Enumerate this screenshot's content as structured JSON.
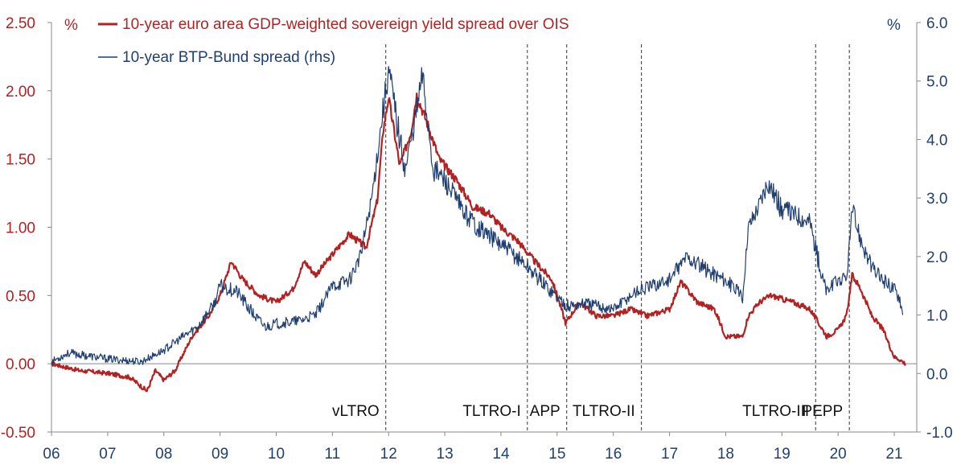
{
  "chart_data": {
    "type": "line",
    "title": "",
    "x_ticks": [
      "06",
      "07",
      "08",
      "09",
      "10",
      "11",
      "12",
      "13",
      "14",
      "15",
      "16",
      "17",
      "18",
      "19",
      "20",
      "21"
    ],
    "x_range": [
      2006.0,
      2021.4
    ],
    "y_left": {
      "unit": "%",
      "range": [
        -0.5,
        2.5
      ],
      "ticks": [
        "-0.50",
        "0.00",
        "0.50",
        "1.00",
        "1.50",
        "2.00",
        "2.50"
      ],
      "color": "#b22222"
    },
    "y_right": {
      "unit": "%",
      "range": [
        -1.0,
        6.0
      ],
      "ticks": [
        "-1.0",
        "0.0",
        "1.0",
        "2.0",
        "3.0",
        "4.0",
        "5.0",
        "6.0"
      ],
      "color": "#1f3f73"
    },
    "legend_position": "top-left",
    "series": [
      {
        "name": "10-year euro area GDP-weighted sovereign yield spread over OIS",
        "axis": "left",
        "color": "#b22222",
        "points": [
          [
            2006.0,
            0.0
          ],
          [
            2006.5,
            -0.05
          ],
          [
            2007.0,
            -0.07
          ],
          [
            2007.4,
            -0.1
          ],
          [
            2007.7,
            -0.2
          ],
          [
            2007.85,
            -0.05
          ],
          [
            2008.0,
            -0.12
          ],
          [
            2008.2,
            -0.05
          ],
          [
            2008.5,
            0.2
          ],
          [
            2008.8,
            0.35
          ],
          [
            2009.0,
            0.5
          ],
          [
            2009.2,
            0.75
          ],
          [
            2009.4,
            0.62
          ],
          [
            2009.7,
            0.5
          ],
          [
            2010.0,
            0.45
          ],
          [
            2010.3,
            0.55
          ],
          [
            2010.5,
            0.75
          ],
          [
            2010.7,
            0.65
          ],
          [
            2011.0,
            0.8
          ],
          [
            2011.3,
            0.95
          ],
          [
            2011.6,
            0.85
          ],
          [
            2011.8,
            1.2
          ],
          [
            2011.9,
            1.7
          ],
          [
            2012.0,
            1.95
          ],
          [
            2012.1,
            1.7
          ],
          [
            2012.2,
            1.45
          ],
          [
            2012.4,
            1.7
          ],
          [
            2012.5,
            1.97
          ],
          [
            2012.7,
            1.75
          ],
          [
            2012.9,
            1.5
          ],
          [
            2013.2,
            1.35
          ],
          [
            2013.5,
            1.15
          ],
          [
            2013.8,
            1.1
          ],
          [
            2014.0,
            1.0
          ],
          [
            2014.3,
            0.9
          ],
          [
            2014.6,
            0.75
          ],
          [
            2014.9,
            0.62
          ],
          [
            2015.0,
            0.5
          ],
          [
            2015.15,
            0.3
          ],
          [
            2015.4,
            0.45
          ],
          [
            2015.7,
            0.35
          ],
          [
            2016.0,
            0.35
          ],
          [
            2016.3,
            0.4
          ],
          [
            2016.6,
            0.35
          ],
          [
            2017.0,
            0.4
          ],
          [
            2017.2,
            0.6
          ],
          [
            2017.5,
            0.45
          ],
          [
            2017.8,
            0.4
          ],
          [
            2018.0,
            0.2
          ],
          [
            2018.3,
            0.2
          ],
          [
            2018.4,
            0.35
          ],
          [
            2018.6,
            0.45
          ],
          [
            2018.8,
            0.5
          ],
          [
            2019.2,
            0.45
          ],
          [
            2019.5,
            0.4
          ],
          [
            2019.8,
            0.2
          ],
          [
            2020.0,
            0.25
          ],
          [
            2020.15,
            0.35
          ],
          [
            2020.25,
            0.65
          ],
          [
            2020.4,
            0.55
          ],
          [
            2020.6,
            0.35
          ],
          [
            2020.8,
            0.25
          ],
          [
            2021.0,
            0.05
          ],
          [
            2021.1,
            0.03
          ],
          [
            2021.2,
            0.0
          ]
        ]
      },
      {
        "name": "10-year BTP-Bund spread (rhs)",
        "axis": "right",
        "color": "#1f3f73",
        "points": [
          [
            2006.0,
            0.2
          ],
          [
            2006.3,
            0.35
          ],
          [
            2007.0,
            0.25
          ],
          [
            2007.6,
            0.2
          ],
          [
            2008.0,
            0.4
          ],
          [
            2008.3,
            0.6
          ],
          [
            2008.6,
            0.8
          ],
          [
            2008.9,
            1.2
          ],
          [
            2009.0,
            1.5
          ],
          [
            2009.3,
            1.4
          ],
          [
            2009.6,
            1.0
          ],
          [
            2009.8,
            0.8
          ],
          [
            2010.0,
            0.85
          ],
          [
            2010.4,
            0.9
          ],
          [
            2010.7,
            1.0
          ],
          [
            2011.0,
            1.5
          ],
          [
            2011.3,
            1.6
          ],
          [
            2011.5,
            2.0
          ],
          [
            2011.7,
            3.0
          ],
          [
            2011.9,
            4.5
          ],
          [
            2012.0,
            5.2
          ],
          [
            2012.2,
            4.0
          ],
          [
            2012.3,
            3.5
          ],
          [
            2012.5,
            4.5
          ],
          [
            2012.6,
            5.1
          ],
          [
            2012.8,
            3.5
          ],
          [
            2013.0,
            3.3
          ],
          [
            2013.3,
            2.8
          ],
          [
            2013.6,
            2.5
          ],
          [
            2014.0,
            2.2
          ],
          [
            2014.4,
            1.9
          ],
          [
            2014.7,
            1.6
          ],
          [
            2015.0,
            1.3
          ],
          [
            2015.2,
            1.15
          ],
          [
            2015.5,
            1.2
          ],
          [
            2016.0,
            1.1
          ],
          [
            2016.4,
            1.4
          ],
          [
            2016.7,
            1.5
          ],
          [
            2017.0,
            1.6
          ],
          [
            2017.3,
            2.0
          ],
          [
            2017.6,
            1.8
          ],
          [
            2018.0,
            1.6
          ],
          [
            2018.3,
            1.3
          ],
          [
            2018.4,
            2.5
          ],
          [
            2018.6,
            2.9
          ],
          [
            2018.75,
            3.3
          ],
          [
            2019.0,
            2.8
          ],
          [
            2019.3,
            2.7
          ],
          [
            2019.5,
            2.6
          ],
          [
            2019.7,
            1.7
          ],
          [
            2019.8,
            1.4
          ],
          [
            2020.0,
            1.6
          ],
          [
            2020.15,
            1.6
          ],
          [
            2020.25,
            2.8
          ],
          [
            2020.4,
            2.3
          ],
          [
            2020.6,
            1.8
          ],
          [
            2020.8,
            1.6
          ],
          [
            2021.0,
            1.45
          ],
          [
            2021.1,
            1.3
          ],
          [
            2021.15,
            1.0
          ]
        ]
      }
    ],
    "events": [
      {
        "label": "vLTRO",
        "x": 2011.95
      },
      {
        "label": "TLTRO-I",
        "x": 2014.47
      },
      {
        "label": "APP",
        "x": 2015.17
      },
      {
        "label": "TLTRO-II",
        "x": 2016.5
      },
      {
        "label": "TLTRO-III",
        "x": 2019.6
      },
      {
        "label": "PEPP",
        "x": 2020.2
      }
    ]
  }
}
